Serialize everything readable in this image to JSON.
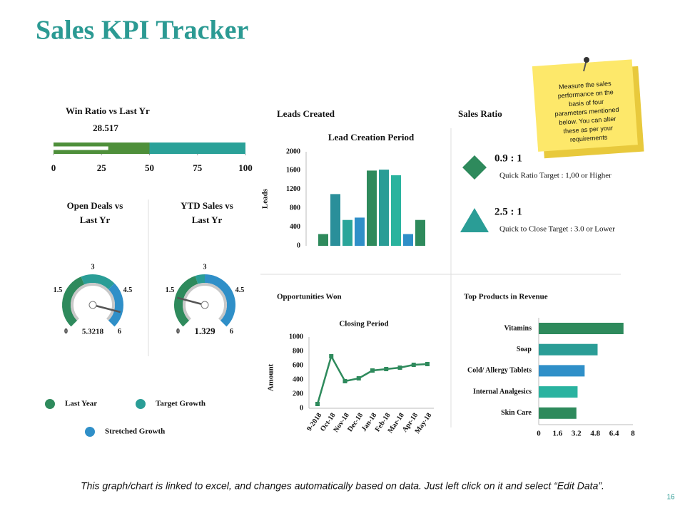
{
  "title": "Sales KPI Tracker",
  "note": {
    "lines": [
      "Measure the sales",
      "performance on the",
      "basis of four",
      "parameters mentioned",
      "below. You can alter",
      "these as per your",
      "requirements"
    ]
  },
  "sections": {
    "leads": "Leads Created",
    "sales_ratio": "Sales Ratio",
    "opportunities": "Opportunities  Won",
    "products": "Top Products  in Revenue"
  },
  "sales_ratio": [
    {
      "ratio": "0.9 : 1",
      "target": "Quick Ratio Target : 1,00  or Higher",
      "color": "#2e8a5c"
    },
    {
      "ratio": "2.5 : 1",
      "target": "Quick to Close Target : 3.0 or Lower",
      "color": "#2a9d96"
    }
  ],
  "legend": [
    {
      "name": "Last Year",
      "color": "#2e8a5c"
    },
    {
      "name": "Target Growth",
      "color": "#2a9d96"
    },
    {
      "name": "Stretched Growth",
      "color": "#2f8fc8"
    }
  ],
  "footer": "This graph/chart is linked to excel, and changes automatically based on data. Just left click on it and select “Edit Data”.",
  "page_number": "16",
  "chart_data": [
    {
      "type": "bullet",
      "title": "Win Ratio vs Last Yr",
      "value": 28.517,
      "bands": [
        50,
        100
      ],
      "band_colors": [
        "#4e8f3a",
        "#2aa198"
      ],
      "xlim": [
        0,
        100
      ],
      "xticks": [
        0,
        25,
        50,
        75,
        100
      ]
    },
    {
      "type": "gauge",
      "title": [
        "Open Deals vs",
        "Last Yr"
      ],
      "value": 5.3218,
      "bands": [
        2.5,
        4,
        6
      ],
      "band_colors": [
        "#2e8a5c",
        "#2a9d96",
        "#2f8fc8"
      ],
      "ylim": [
        0,
        6
      ],
      "yticks": [
        0,
        1.5,
        3,
        4.5,
        6
      ]
    },
    {
      "type": "gauge",
      "title": [
        "YTD Sales vs",
        "Last Yr"
      ],
      "value": 1.329,
      "bands": [
        2.6,
        3,
        6
      ],
      "band_colors": [
        "#2e8a5c",
        "#2a9d96",
        "#2f8fc8"
      ],
      "ylim": [
        0,
        6
      ],
      "yticks": [
        0,
        1.5,
        3,
        4.5,
        6
      ]
    },
    {
      "type": "bar",
      "title": "Lead Creation Period",
      "ylabel": "Leads",
      "categories": [
        null,
        null,
        null,
        null,
        null,
        null,
        null,
        null,
        null
      ],
      "values": [
        250,
        1100,
        550,
        600,
        1600,
        1620,
        1500,
        250,
        550
      ],
      "colors": [
        "#2e8a5c",
        "#2a8f9a",
        "#2aa59a",
        "#2f8fc8",
        "#2e8a5c",
        "#2a9d96",
        "#2ab39e",
        "#2f8fc8",
        "#2e8a5c"
      ],
      "ylim": [
        0,
        2000
      ],
      "yticks": [
        0,
        400,
        800,
        1200,
        1600,
        2000
      ]
    },
    {
      "type": "line",
      "title": "Closing Period",
      "ylabel": "Amount",
      "categories": [
        "9-2018",
        "Oct-18",
        "Nov-18",
        "Dec-18",
        "Jan-18",
        "Feb-18",
        "Mar-18",
        "Apr-18",
        "May-18"
      ],
      "values": [
        60,
        730,
        380,
        420,
        530,
        550,
        570,
        610,
        620
      ],
      "color": "#2e8a5c",
      "ylim": [
        0,
        1000
      ],
      "yticks": [
        0,
        200,
        400,
        600,
        800,
        1000
      ]
    },
    {
      "type": "barh",
      "categories": [
        "Vitamins",
        "Soap",
        "Cold/ Allergy Tablets",
        "Internal Analgesics",
        "Skin Care"
      ],
      "values": [
        7.2,
        5,
        3.9,
        3.3,
        3.2
      ],
      "colors": [
        "#2e8a5c",
        "#2a9d96",
        "#2f8fc8",
        "#2ab3a0",
        "#2e8a5c"
      ],
      "xlim": [
        0,
        8
      ],
      "xticks": [
        0,
        1.6,
        3.2,
        4.8,
        6.4,
        8
      ]
    }
  ]
}
